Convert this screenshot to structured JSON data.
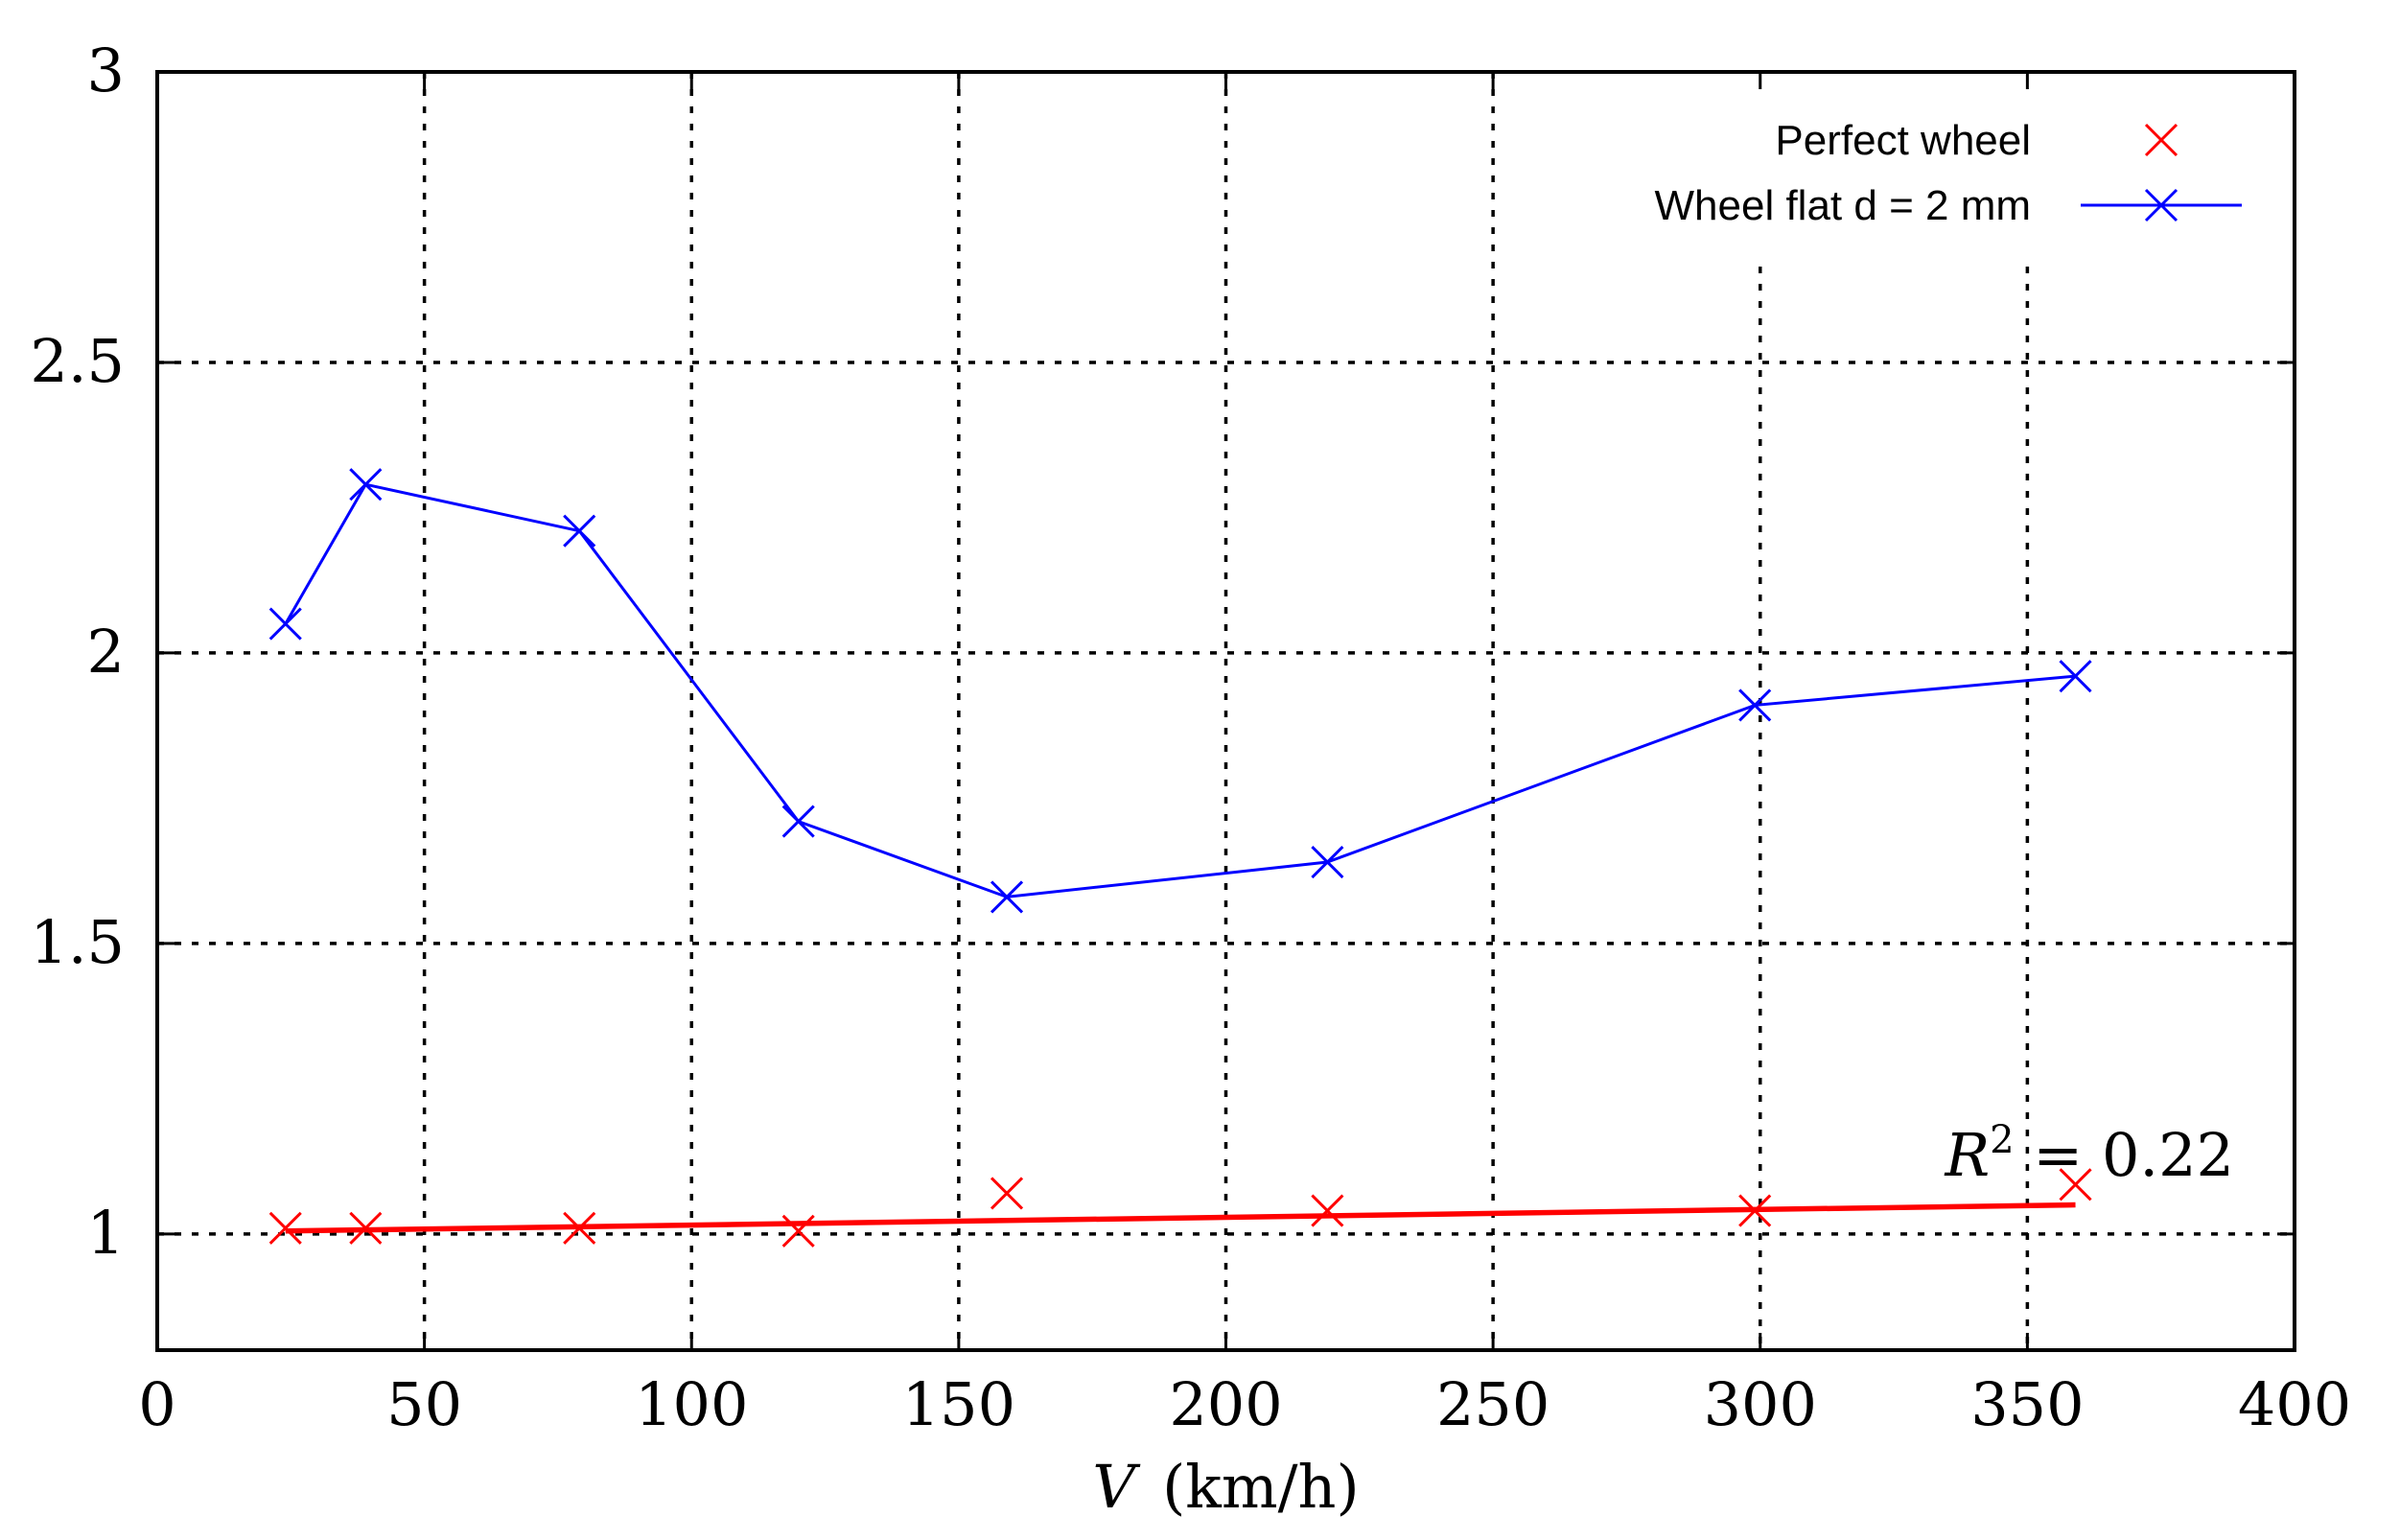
{
  "chart_data": {
    "type": "line",
    "title": "",
    "xlabel_symbol": "V",
    "xlabel_unit": "(km/h)",
    "ylabel": "",
    "xlim": [
      0,
      400
    ],
    "ylim": [
      0.8,
      3
    ],
    "x_ticks": [
      0,
      50,
      100,
      150,
      200,
      250,
      300,
      350,
      400
    ],
    "x_tick_labels": [
      "0",
      "50",
      "100",
      "150",
      "200",
      "250",
      "300",
      "350",
      "400"
    ],
    "y_ticks": [
      1,
      1.5,
      2,
      2.5,
      3
    ],
    "y_tick_labels": [
      "1",
      "1.5",
      "2",
      "2.5",
      "3"
    ],
    "grid": true,
    "legend_position": "top-right",
    "series": [
      {
        "name": "Perfect wheel",
        "style": "markers",
        "marker": "x",
        "color": "#ff0000",
        "x": [
          24,
          39,
          79,
          120,
          159,
          219,
          299,
          359
        ],
        "y": [
          1.01,
          1.01,
          1.01,
          1.005,
          1.07,
          1.04,
          1.04,
          1.085
        ]
      },
      {
        "name": "Wheel flat d = 2 mm",
        "style": "line+markers",
        "marker": "x",
        "color": "#0000ff",
        "x": [
          24,
          39,
          79,
          120,
          159,
          219,
          299,
          359
        ],
        "y": [
          2.05,
          2.29,
          2.21,
          1.71,
          1.58,
          1.64,
          1.91,
          1.96
        ]
      }
    ],
    "fit_line": {
      "name": "Perfect wheel linear fit",
      "color": "#ff0000",
      "x": [
        24,
        359
      ],
      "y": [
        1.005,
        1.05
      ]
    },
    "annotation": {
      "symbol": "R",
      "exponent": "2",
      "text": " = 0.22"
    }
  }
}
